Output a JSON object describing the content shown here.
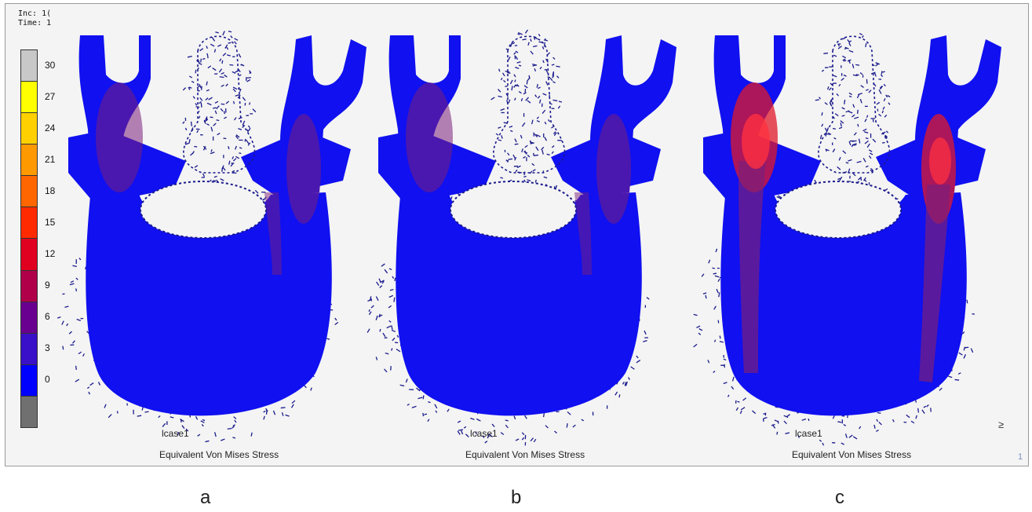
{
  "header": {
    "inc_text": "Inc: 1(",
    "time_text": "Time: 1"
  },
  "legend": {
    "labels": [
      "30",
      "27",
      "24",
      "21",
      "18",
      "15",
      "12",
      "9",
      "6",
      "3",
      "0"
    ],
    "colors": [
      "#c8c8c8",
      "#ffff00",
      "#ffd000",
      "#ff9900",
      "#ff6600",
      "#ff2a00",
      "#e00020",
      "#b0004a",
      "#6a0090",
      "#3a10c8",
      "#0000ff",
      "#707070"
    ]
  },
  "panels": [
    {
      "letter": "a",
      "case_label": "lcase1",
      "result_label": "Equivalent Von Mises Stress",
      "stress": "low"
    },
    {
      "letter": "b",
      "case_label": "lcase1",
      "result_label": "Equivalent Von Mises Stress",
      "stress": "low"
    },
    {
      "letter": "c",
      "case_label": "lcase1",
      "result_label": "Equivalent Von Mises Stress",
      "stress": "high"
    }
  ],
  "colors": {
    "mesh_fill": "#1010f0",
    "stress_low": "#7a1f7a",
    "stress_high": "#e0182a",
    "mesh_edge": "#1a1a8c",
    "background": "#f4f4f4"
  },
  "misc": {
    "axis_glyph": "≥",
    "viewport_number": "1"
  }
}
